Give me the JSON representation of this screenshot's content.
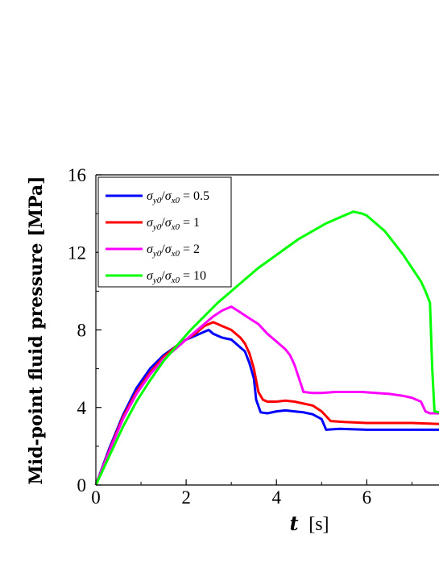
{
  "chart_data": {
    "type": "line",
    "title": "",
    "xlabel": "t [s]",
    "xlabel_var": "t",
    "xlabel_unit": "[s]",
    "ylabel": "Mid-point fluid pressure [MPa]",
    "xlim": [
      0,
      7.6
    ],
    "ylim": [
      0,
      16
    ],
    "xticks": [
      0,
      2,
      4,
      6
    ],
    "yticks": [
      0,
      4,
      8,
      12,
      16
    ],
    "grid": false,
    "legend_position": "top-left",
    "series": [
      {
        "name": "σy0/σx0 = 0.5",
        "ratio": "0.5",
        "color": "#0000ff",
        "points": [
          [
            0,
            0
          ],
          [
            0.3,
            1.9
          ],
          [
            0.6,
            3.6
          ],
          [
            0.9,
            5.0
          ],
          [
            1.2,
            6.0
          ],
          [
            1.5,
            6.7
          ],
          [
            1.8,
            7.2
          ],
          [
            2.0,
            7.5
          ],
          [
            2.2,
            7.7
          ],
          [
            2.4,
            7.9
          ],
          [
            2.5,
            8.0
          ],
          [
            2.6,
            7.8
          ],
          [
            2.7,
            7.7
          ],
          [
            2.8,
            7.6
          ],
          [
            3.0,
            7.5
          ],
          [
            3.1,
            7.3
          ],
          [
            3.2,
            7.1
          ],
          [
            3.3,
            6.9
          ],
          [
            3.4,
            6.3
          ],
          [
            3.5,
            5.5
          ],
          [
            3.55,
            4.4
          ],
          [
            3.65,
            3.75
          ],
          [
            3.8,
            3.7
          ],
          [
            4.0,
            3.8
          ],
          [
            4.2,
            3.85
          ],
          [
            4.4,
            3.8
          ],
          [
            4.6,
            3.75
          ],
          [
            4.8,
            3.65
          ],
          [
            5.0,
            3.4
          ],
          [
            5.1,
            2.85
          ],
          [
            5.4,
            2.9
          ],
          [
            6.0,
            2.85
          ],
          [
            6.5,
            2.85
          ],
          [
            7.0,
            2.85
          ],
          [
            7.6,
            2.85
          ]
        ]
      },
      {
        "name": "σy0/σx0 = 1",
        "ratio": "1",
        "color": "#ff0000",
        "points": [
          [
            0,
            0
          ],
          [
            0.3,
            1.8
          ],
          [
            0.6,
            3.5
          ],
          [
            0.9,
            4.8
          ],
          [
            1.2,
            5.8
          ],
          [
            1.5,
            6.6
          ],
          [
            1.8,
            7.2
          ],
          [
            2.0,
            7.5
          ],
          [
            2.2,
            7.8
          ],
          [
            2.4,
            8.2
          ],
          [
            2.6,
            8.4
          ],
          [
            2.7,
            8.3
          ],
          [
            2.8,
            8.2
          ],
          [
            3.0,
            8.0
          ],
          [
            3.2,
            7.6
          ],
          [
            3.3,
            7.3
          ],
          [
            3.4,
            6.8
          ],
          [
            3.5,
            6.0
          ],
          [
            3.6,
            4.8
          ],
          [
            3.7,
            4.4
          ],
          [
            3.8,
            4.3
          ],
          [
            4.0,
            4.3
          ],
          [
            4.2,
            4.35
          ],
          [
            4.4,
            4.3
          ],
          [
            4.6,
            4.2
          ],
          [
            4.8,
            4.1
          ],
          [
            5.0,
            3.8
          ],
          [
            5.2,
            3.3
          ],
          [
            5.5,
            3.25
          ],
          [
            6.0,
            3.2
          ],
          [
            6.5,
            3.2
          ],
          [
            7.0,
            3.2
          ],
          [
            7.6,
            3.15
          ]
        ]
      },
      {
        "name": "σy0/σx0 = 2",
        "ratio": "2",
        "color": "#ff00ff",
        "points": [
          [
            0,
            0
          ],
          [
            0.3,
            1.75
          ],
          [
            0.6,
            3.4
          ],
          [
            0.9,
            4.7
          ],
          [
            1.2,
            5.7
          ],
          [
            1.5,
            6.5
          ],
          [
            1.8,
            7.1
          ],
          [
            2.0,
            7.5
          ],
          [
            2.2,
            7.9
          ],
          [
            2.4,
            8.3
          ],
          [
            2.6,
            8.7
          ],
          [
            2.8,
            9.0
          ],
          [
            3.0,
            9.2
          ],
          [
            3.2,
            8.9
          ],
          [
            3.4,
            8.6
          ],
          [
            3.6,
            8.3
          ],
          [
            3.8,
            7.8
          ],
          [
            4.0,
            7.4
          ],
          [
            4.2,
            7.0
          ],
          [
            4.3,
            6.7
          ],
          [
            4.4,
            6.2
          ],
          [
            4.5,
            5.5
          ],
          [
            4.6,
            4.8
          ],
          [
            4.8,
            4.75
          ],
          [
            5.0,
            4.75
          ],
          [
            5.3,
            4.8
          ],
          [
            5.6,
            4.8
          ],
          [
            5.9,
            4.8
          ],
          [
            6.2,
            4.75
          ],
          [
            6.5,
            4.7
          ],
          [
            6.8,
            4.6
          ],
          [
            7.0,
            4.5
          ],
          [
            7.2,
            4.3
          ],
          [
            7.3,
            3.8
          ],
          [
            7.4,
            3.7
          ],
          [
            7.6,
            3.7
          ]
        ]
      },
      {
        "name": "σy0/σx0 = 10",
        "ratio": "10",
        "color": "#00ff00",
        "points": [
          [
            0,
            0
          ],
          [
            0.3,
            1.5
          ],
          [
            0.6,
            3.0
          ],
          [
            0.9,
            4.3
          ],
          [
            1.2,
            5.4
          ],
          [
            1.5,
            6.4
          ],
          [
            1.8,
            7.2
          ],
          [
            2.1,
            8.0
          ],
          [
            2.4,
            8.7
          ],
          [
            2.7,
            9.4
          ],
          [
            3.0,
            10.0
          ],
          [
            3.3,
            10.6
          ],
          [
            3.6,
            11.2
          ],
          [
            3.9,
            11.7
          ],
          [
            4.2,
            12.2
          ],
          [
            4.5,
            12.7
          ],
          [
            4.8,
            13.1
          ],
          [
            5.1,
            13.5
          ],
          [
            5.4,
            13.8
          ],
          [
            5.7,
            14.1
          ],
          [
            5.9,
            14.0
          ],
          [
            6.0,
            13.9
          ],
          [
            6.2,
            13.5
          ],
          [
            6.4,
            13.1
          ],
          [
            6.6,
            12.5
          ],
          [
            6.8,
            11.9
          ],
          [
            7.0,
            11.2
          ],
          [
            7.2,
            10.5
          ],
          [
            7.3,
            10.0
          ],
          [
            7.4,
            9.4
          ],
          [
            7.45,
            6.0
          ],
          [
            7.5,
            3.8
          ],
          [
            7.6,
            3.75
          ]
        ]
      }
    ]
  }
}
